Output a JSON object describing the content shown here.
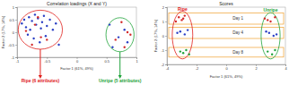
{
  "chart_data": [
    {
      "type": "scatter",
      "title": "Correlation loadings (X and Y)",
      "x_label": "Factor 1 (61%, 49%)",
      "y_label": "Factor 2 (17%, 14%)",
      "xlim": [
        -1,
        1
      ],
      "ylim": [
        -1,
        1
      ],
      "xticks": [
        -1,
        -0.5,
        0,
        0.5,
        1
      ],
      "yticks": [
        -1,
        -0.5,
        0,
        0.5,
        1
      ],
      "grid": false,
      "series": [
        {
          "color": "#2b3fc4",
          "marker": "circle",
          "x": [
            -0.92,
            -0.88,
            -0.85,
            -0.8,
            -0.78,
            -0.75,
            -0.7,
            -0.68,
            -0.65,
            -0.6,
            -0.58,
            -0.55,
            -0.5,
            -0.45,
            -0.4,
            -0.35,
            -0.82,
            -0.72,
            -0.62,
            -0.52,
            -0.3,
            0.55,
            0.7,
            0.8,
            0.85,
            0.6
          ],
          "y": [
            0.35,
            0.5,
            0.2,
            0.6,
            0.1,
            0.45,
            0.7,
            0.3,
            0.55,
            0.15,
            0.4,
            0.65,
            0.25,
            0.5,
            0.1,
            0.35,
            -0.1,
            -0.25,
            -0.4,
            -0.15,
            -0.5,
            0.3,
            -0.2,
            0.1,
            -0.4,
            -0.6
          ]
        },
        {
          "color": "#d42a2a",
          "marker": "circle",
          "x": [
            -0.85,
            -0.7,
            -0.6,
            -0.75,
            -0.5,
            -0.65,
            0.75,
            0.85,
            0.65,
            0.9,
            0.8
          ],
          "y": [
            0.05,
            0.3,
            -0.2,
            -0.5,
            -0.3,
            0.6,
            0.4,
            0.0,
            -0.3,
            -0.1,
            -0.6
          ]
        }
      ],
      "annotations": [
        {
          "text": "Ripe (6 attributes)",
          "color": "#e0201c"
        },
        {
          "text": "Unripe (5 attributes)",
          "color": "#1fa33a"
        }
      ]
    },
    {
      "type": "scatter",
      "title": "Scores",
      "x_label": "Factor 1 (61%, 49%)",
      "y_label": "Factor 2 (17%, 14%)",
      "xlim": [
        -4,
        4
      ],
      "ylim": [
        -2,
        2
      ],
      "xticks": [
        -4,
        -2,
        0,
        2,
        4
      ],
      "yticks": [
        -2,
        -1,
        0,
        1,
        2
      ],
      "grid": false,
      "series": [
        {
          "name": "Day 1",
          "color": "#d42a2a",
          "marker": "circle",
          "x": [
            -3.2,
            -3.0,
            -2.8,
            -3.4,
            -2.9,
            2.6,
            3.0,
            3.3,
            2.8
          ],
          "y": [
            1.3,
            1.1,
            1.4,
            1.0,
            1.2,
            1.2,
            1.0,
            1.3,
            1.1
          ]
        },
        {
          "name": "Day 4",
          "color": "#2b3fc4",
          "marker": "circle",
          "x": [
            -3.1,
            -2.8,
            -3.3,
            -2.6,
            2.9,
            3.2,
            2.7,
            3.4
          ],
          "y": [
            0.3,
            0.1,
            0.2,
            0.4,
            0.2,
            0.0,
            0.3,
            0.1
          ]
        },
        {
          "name": "Day 8",
          "color": "#1fa33a",
          "marker": "circle",
          "x": [
            -2.9,
            -2.7,
            -3.1,
            -2.5,
            2.8,
            3.1,
            3.3
          ],
          "y": [
            -1.2,
            -1.0,
            -1.1,
            -1.3,
            -1.1,
            -1.3,
            -1.0
          ]
        }
      ],
      "annotations": [
        {
          "text": "Ripe",
          "color": "#e0201c"
        },
        {
          "text": "Unripe",
          "color": "#1fa33a"
        }
      ]
    }
  ]
}
